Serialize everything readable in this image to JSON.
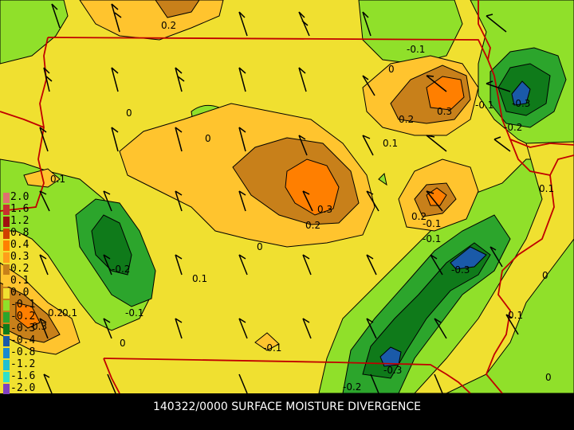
{
  "caption": "140322/0000 SURFACE MOISTURE DIVERGENCE",
  "legend": [
    {
      "label": "2.0",
      "color": "#e07070"
    },
    {
      "label": "1.6",
      "color": "#c83030"
    },
    {
      "label": "1.2",
      "color": "#a01010"
    },
    {
      "label": "0.8",
      "color": "#d04000"
    },
    {
      "label": "0.4",
      "color": "#ff7f00"
    },
    {
      "label": "0.3",
      "color": "#ff9e1a"
    },
    {
      "label": "0.2",
      "color": "#c8801a"
    },
    {
      "label": "0.1",
      "color": "#ffc42e"
    },
    {
      "label": "0.0",
      "color": "#f0e030"
    },
    {
      "label": "-0.1",
      "color": "#90e02a"
    },
    {
      "label": "-0.2",
      "color": "#2ca52c"
    },
    {
      "label": "-0.3",
      "color": "#0f7a1a"
    },
    {
      "label": "-0.4",
      "color": "#1a5aa8"
    },
    {
      "label": "-0.8",
      "color": "#1a8ad0"
    },
    {
      "label": "-1.2",
      "color": "#20c0d0"
    },
    {
      "label": "-1.6",
      "color": "#30e0c8"
    },
    {
      "label": "-2.0",
      "color": "#8040c0"
    }
  ],
  "contour_labels": [
    "0.2",
    "-0.1",
    "0",
    "0",
    "0.3",
    "-0.1",
    "-0.3",
    "0.2",
    "0",
    "0.1",
    "-0.2",
    "0.1",
    "0.3",
    "0.2",
    "0.2",
    "-0.1",
    "-0.1",
    "0.1",
    "0",
    "-0.2",
    "0.1",
    "-0.3",
    "0",
    "0.2",
    "0.1",
    "-0.1",
    "0",
    "-0.1",
    "0.1",
    "-0.3",
    "-0.2",
    "0",
    "0.3"
  ]
}
